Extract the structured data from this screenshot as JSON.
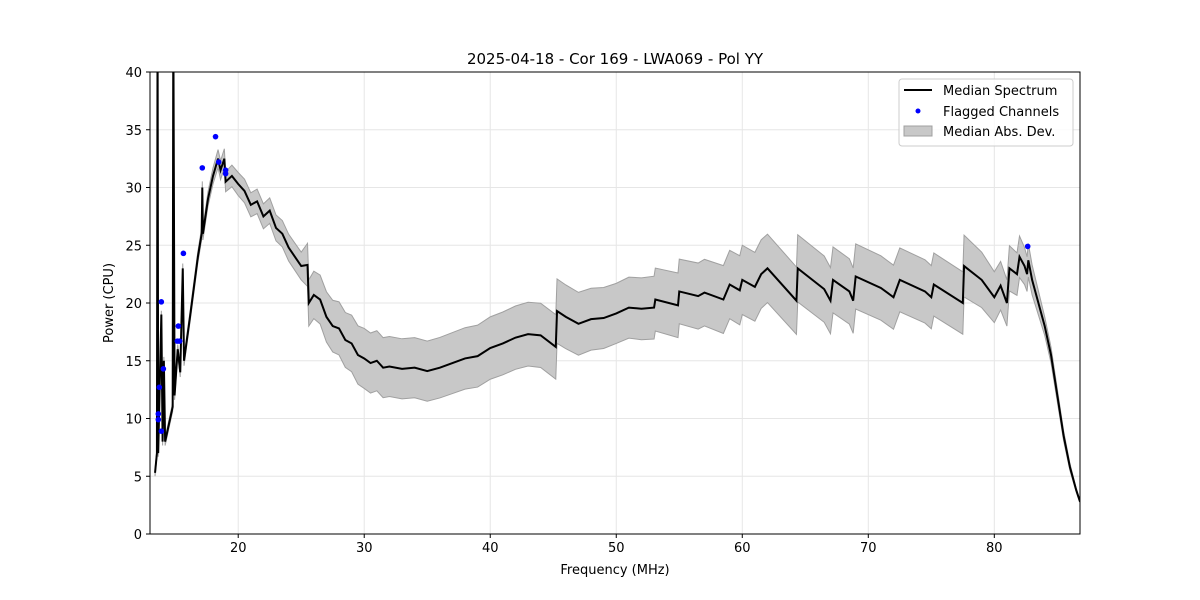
{
  "chart_data": {
    "type": "line",
    "title": "2025-04-18 - Cor 169 - LWA069 - Pol YY",
    "xlabel": "Frequency (MHz)",
    "ylabel": "Power (CPU)",
    "xlim": [
      13,
      86.8
    ],
    "ylim": [
      0,
      40
    ],
    "xticks": [
      20,
      30,
      40,
      50,
      60,
      70,
      80
    ],
    "yticks": [
      0,
      5,
      10,
      15,
      20,
      25,
      30,
      35,
      40
    ],
    "grid": true,
    "legend_position": "top-right",
    "legend": [
      "Median Spectrum",
      "Flagged Channels",
      "Median Abs. Dev."
    ],
    "colors": {
      "median": "#000000",
      "flagged": "#0000ff",
      "mad": "#c8c8c8",
      "mad_edge": "#a0a0a0"
    },
    "median_spectrum": [
      [
        13.4,
        5.3
      ],
      [
        13.55,
        7
      ],
      [
        13.6,
        45
      ],
      [
        13.65,
        7
      ],
      [
        13.9,
        19
      ],
      [
        14.0,
        8
      ],
      [
        14.1,
        15
      ],
      [
        14.2,
        8
      ],
      [
        14.5,
        9.5
      ],
      [
        14.8,
        11
      ],
      [
        14.85,
        45
      ],
      [
        14.95,
        12
      ],
      [
        15.2,
        16
      ],
      [
        15.4,
        14
      ],
      [
        15.6,
        23
      ],
      [
        15.7,
        15
      ],
      [
        16.2,
        19
      ],
      [
        16.8,
        24
      ],
      [
        17.1,
        26
      ],
      [
        17.15,
        30
      ],
      [
        17.2,
        26
      ],
      [
        17.6,
        29
      ],
      [
        18.0,
        31
      ],
      [
        18.4,
        32.5
      ],
      [
        18.6,
        31.5
      ],
      [
        18.9,
        32.5
      ],
      [
        19.0,
        30.5
      ],
      [
        19.5,
        31
      ],
      [
        20,
        30.3
      ],
      [
        20.5,
        29.7
      ],
      [
        21,
        28.5
      ],
      [
        21.5,
        28.8
      ],
      [
        22,
        27.5
      ],
      [
        22.5,
        28
      ],
      [
        23,
        26.5
      ],
      [
        23.5,
        26
      ],
      [
        24,
        24.8
      ],
      [
        24.5,
        24
      ],
      [
        25,
        23.2
      ],
      [
        25.5,
        23.3
      ],
      [
        25.6,
        20
      ],
      [
        26,
        20.7
      ],
      [
        26.5,
        20.3
      ],
      [
        27,
        18.8
      ],
      [
        27.5,
        18
      ],
      [
        28,
        17.8
      ],
      [
        28.5,
        16.8
      ],
      [
        29,
        16.5
      ],
      [
        29.5,
        15.5
      ],
      [
        30,
        15.2
      ],
      [
        30.5,
        14.8
      ],
      [
        31,
        15
      ],
      [
        31.5,
        14.4
      ],
      [
        32,
        14.5
      ],
      [
        33,
        14.3
      ],
      [
        34,
        14.4
      ],
      [
        35,
        14.1
      ],
      [
        36,
        14.4
      ],
      [
        37,
        14.8
      ],
      [
        38,
        15.2
      ],
      [
        39,
        15.4
      ],
      [
        40,
        16.1
      ],
      [
        41,
        16.5
      ],
      [
        42,
        17.0
      ],
      [
        43,
        17.3
      ],
      [
        44,
        17.2
      ],
      [
        45.2,
        16.2
      ],
      [
        45.3,
        19.3
      ],
      [
        46,
        18.8
      ],
      [
        47,
        18.2
      ],
      [
        48,
        18.6
      ],
      [
        49,
        18.7
      ],
      [
        50,
        19.1
      ],
      [
        51,
        19.6
      ],
      [
        52,
        19.5
      ],
      [
        53,
        19.6
      ],
      [
        53.1,
        20.3
      ],
      [
        54.9,
        19.8
      ],
      [
        55,
        21
      ],
      [
        56.5,
        20.6
      ],
      [
        57,
        20.9
      ],
      [
        58.5,
        20.3
      ],
      [
        59,
        21.6
      ],
      [
        59.8,
        21.1
      ],
      [
        60,
        22
      ],
      [
        61,
        21.4
      ],
      [
        61.5,
        22.5
      ],
      [
        62,
        23
      ],
      [
        64.3,
        20.2
      ],
      [
        64.4,
        23
      ],
      [
        66.5,
        21.2
      ],
      [
        67,
        20.2
      ],
      [
        67.2,
        22
      ],
      [
        68.5,
        21
      ],
      [
        68.8,
        20.2
      ],
      [
        69,
        22.3
      ],
      [
        71,
        21.3
      ],
      [
        72,
        20.5
      ],
      [
        72.5,
        22
      ],
      [
        74.5,
        21
      ],
      [
        75,
        20.5
      ],
      [
        75.2,
        21.6
      ],
      [
        77.5,
        20
      ],
      [
        77.6,
        23.2
      ],
      [
        79,
        22
      ],
      [
        80,
        20.5
      ],
      [
        80.5,
        21.5
      ],
      [
        81,
        20
      ],
      [
        81.2,
        23
      ],
      [
        81.8,
        22.5
      ],
      [
        82,
        24
      ],
      [
        82.4,
        23.2
      ],
      [
        82.6,
        22.5
      ],
      [
        82.7,
        23.7
      ],
      [
        83,
        22
      ],
      [
        83.5,
        20
      ],
      [
        84,
        18
      ],
      [
        84.5,
        15.5
      ],
      [
        85,
        12
      ],
      [
        85.5,
        8.5
      ],
      [
        86,
        5.8
      ],
      [
        86.5,
        3.8
      ],
      [
        86.8,
        2.8
      ]
    ],
    "mad_halfwidth": [
      [
        13.4,
        0.3
      ],
      [
        17,
        0.5
      ],
      [
        18.5,
        0.8
      ],
      [
        20,
        1.0
      ],
      [
        25,
        1.2
      ],
      [
        25.6,
        2.0
      ],
      [
        28,
        2.3
      ],
      [
        30,
        2.6
      ],
      [
        35,
        2.6
      ],
      [
        40,
        2.7
      ],
      [
        45,
        2.8
      ],
      [
        50,
        2.6
      ],
      [
        55,
        2.8
      ],
      [
        60,
        3.0
      ],
      [
        65,
        2.9
      ],
      [
        70,
        2.8
      ],
      [
        77.5,
        2.7
      ],
      [
        81,
        2.0
      ],
      [
        82,
        1.8
      ],
      [
        84,
        0.8
      ],
      [
        86.8,
        0.1
      ]
    ],
    "flagged_channels": [
      [
        13.66,
        10.4
      ],
      [
        13.66,
        9.9
      ],
      [
        13.74,
        12.7
      ],
      [
        13.9,
        20.1
      ],
      [
        13.9,
        8.9
      ],
      [
        14.06,
        14.3
      ],
      [
        15.17,
        16.7
      ],
      [
        15.25,
        18.0
      ],
      [
        15.35,
        16.7
      ],
      [
        15.65,
        24.3
      ],
      [
        17.15,
        31.7
      ],
      [
        18.2,
        34.4
      ],
      [
        18.45,
        32.2
      ],
      [
        19.0,
        31.5
      ],
      [
        19.0,
        31.2
      ],
      [
        82.65,
        24.9
      ]
    ]
  }
}
